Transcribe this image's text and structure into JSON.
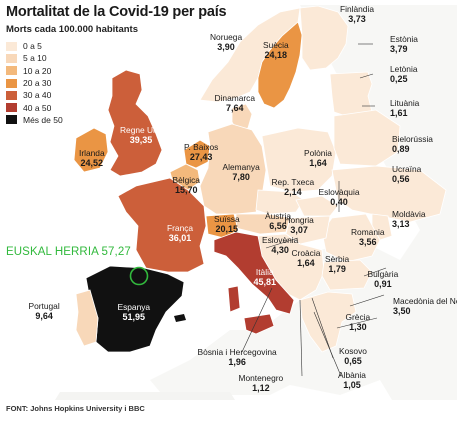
{
  "title": "Mortalitat de la Covid-19 per país",
  "subtitle": "Morts cada 100.000 habitants",
  "legend": [
    {
      "label": "0 a 5",
      "color": "#fbe9d7"
    },
    {
      "label": "5 a 10",
      "color": "#f8d8b9"
    },
    {
      "label": "10 a 20",
      "color": "#f3b97c"
    },
    {
      "label": "20 a 30",
      "color": "#ea9544"
    },
    {
      "label": "30 a 40",
      "color": "#cc5f3a"
    },
    {
      "label": "40 a 50",
      "color": "#b23d30"
    },
    {
      "label": "Més de 50",
      "color": "#111111"
    }
  ],
  "countries": [
    {
      "name": "Noruega",
      "value": "3,90"
    },
    {
      "name": "Suècia",
      "value": "24,18"
    },
    {
      "name": "Finlàndia",
      "value": "3,73"
    },
    {
      "name": "Estònia",
      "value": "3,79"
    },
    {
      "name": "Letònia",
      "value": "0,25"
    },
    {
      "name": "Lituània",
      "value": "1,61"
    },
    {
      "name": "Dinamarca",
      "value": "7,64"
    },
    {
      "name": "Regne Unit",
      "value": "39,35"
    },
    {
      "name": "Irlanda",
      "value": "24,52"
    },
    {
      "name": "P. Baixos",
      "value": "27,43"
    },
    {
      "name": "Bèlgica",
      "value": "15,70"
    },
    {
      "name": "Alemanya",
      "value": "7,80"
    },
    {
      "name": "Polònia",
      "value": "1,64"
    },
    {
      "name": "Bielorússia",
      "value": "0,89"
    },
    {
      "name": "Ucraïna",
      "value": "0,56"
    },
    {
      "name": "Rep. Txeca",
      "value": "2,14"
    },
    {
      "name": "Eslovàquia",
      "value": "0,40"
    },
    {
      "name": "Moldàvia",
      "value": "3,13"
    },
    {
      "name": "França",
      "value": "36,01"
    },
    {
      "name": "Suïssa",
      "value": "20,15"
    },
    {
      "name": "Àustria",
      "value": "6,56"
    },
    {
      "name": "Hongria",
      "value": "3,07"
    },
    {
      "name": "Romania",
      "value": "3,56"
    },
    {
      "name": "Eslovènia",
      "value": "4,30"
    },
    {
      "name": "Croàcia",
      "value": "1,64"
    },
    {
      "name": "Sèrbia",
      "value": "1,79"
    },
    {
      "name": "Bulgària",
      "value": "0,91"
    },
    {
      "name": "Itàlia",
      "value": "45,81"
    },
    {
      "name": "Portugal",
      "value": "9,64"
    },
    {
      "name": "Espanya",
      "value": "51,95"
    },
    {
      "name": "Macedònia del Nord",
      "value": "3,50"
    },
    {
      "name": "Grècia",
      "value": "1,30"
    },
    {
      "name": "Bòsnia i Hercegovina",
      "value": "1,96"
    },
    {
      "name": "Kosovo",
      "value": "0,65"
    },
    {
      "name": "Montenegro",
      "value": "1,12"
    },
    {
      "name": "Albània",
      "value": "1,05"
    }
  ],
  "highlight": {
    "label": "EUSKAL HERRIA 57,27",
    "color": "#32b93d"
  },
  "source": {
    "prefix": "FONT:",
    "text": "Johns Hopkins University i BBC"
  }
}
